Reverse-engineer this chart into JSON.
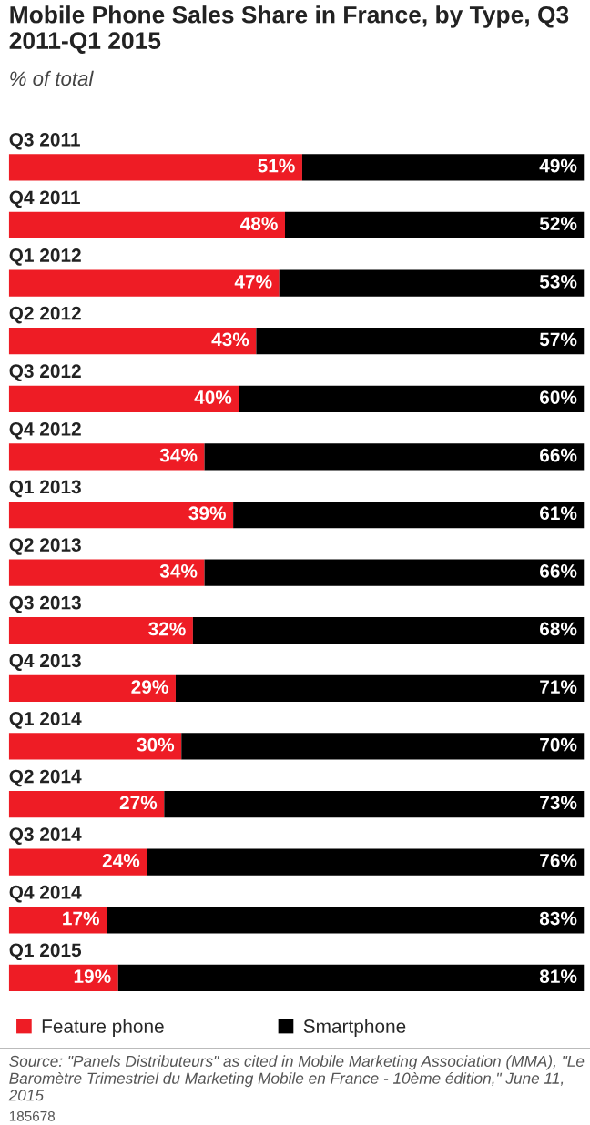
{
  "chart_data": {
    "type": "bar",
    "orientation": "horizontal",
    "stacked": true,
    "title": "Mobile Phone Sales Share in France, by Type, Q3 2011-Q1 2015",
    "subtitle": "% of total",
    "categories": [
      "Q3 2011",
      "Q4 2011",
      "Q1 2012",
      "Q2 2012",
      "Q3 2012",
      "Q4 2012",
      "Q1 2013",
      "Q2 2013",
      "Q3 2013",
      "Q4 2013",
      "Q1 2014",
      "Q2 2014",
      "Q3 2014",
      "Q4 2014",
      "Q1 2015"
    ],
    "series": [
      {
        "name": "Feature phone",
        "color": "#ee1c25",
        "values": [
          51,
          48,
          47,
          43,
          40,
          34,
          39,
          34,
          32,
          29,
          30,
          27,
          24,
          17,
          19
        ],
        "value_labels": [
          "51%",
          "48%",
          "47%",
          "43%",
          "40%",
          "34%",
          "39%",
          "34%",
          "32%",
          "29%",
          "30%",
          "27%",
          "24%",
          "17%",
          "19%"
        ]
      },
      {
        "name": "Smartphone",
        "color": "#000000",
        "values": [
          49,
          52,
          53,
          57,
          60,
          66,
          61,
          66,
          68,
          71,
          70,
          73,
          76,
          83,
          81
        ],
        "value_labels": [
          "49%",
          "52%",
          "53%",
          "57%",
          "60%",
          "66%",
          "61%",
          "66%",
          "68%",
          "71%",
          "70%",
          "73%",
          "76%",
          "83%",
          "81%"
        ]
      }
    ],
    "legend": "bottom",
    "annotations": [
      "Source: \"Panels Distributeurs\" as cited in Mobile Marketing Association (MMA), \"Le Baromètre Trimestriel du Marketing Mobile en France - 10ème édition,\" June 11, 2015",
      "185678"
    ]
  }
}
